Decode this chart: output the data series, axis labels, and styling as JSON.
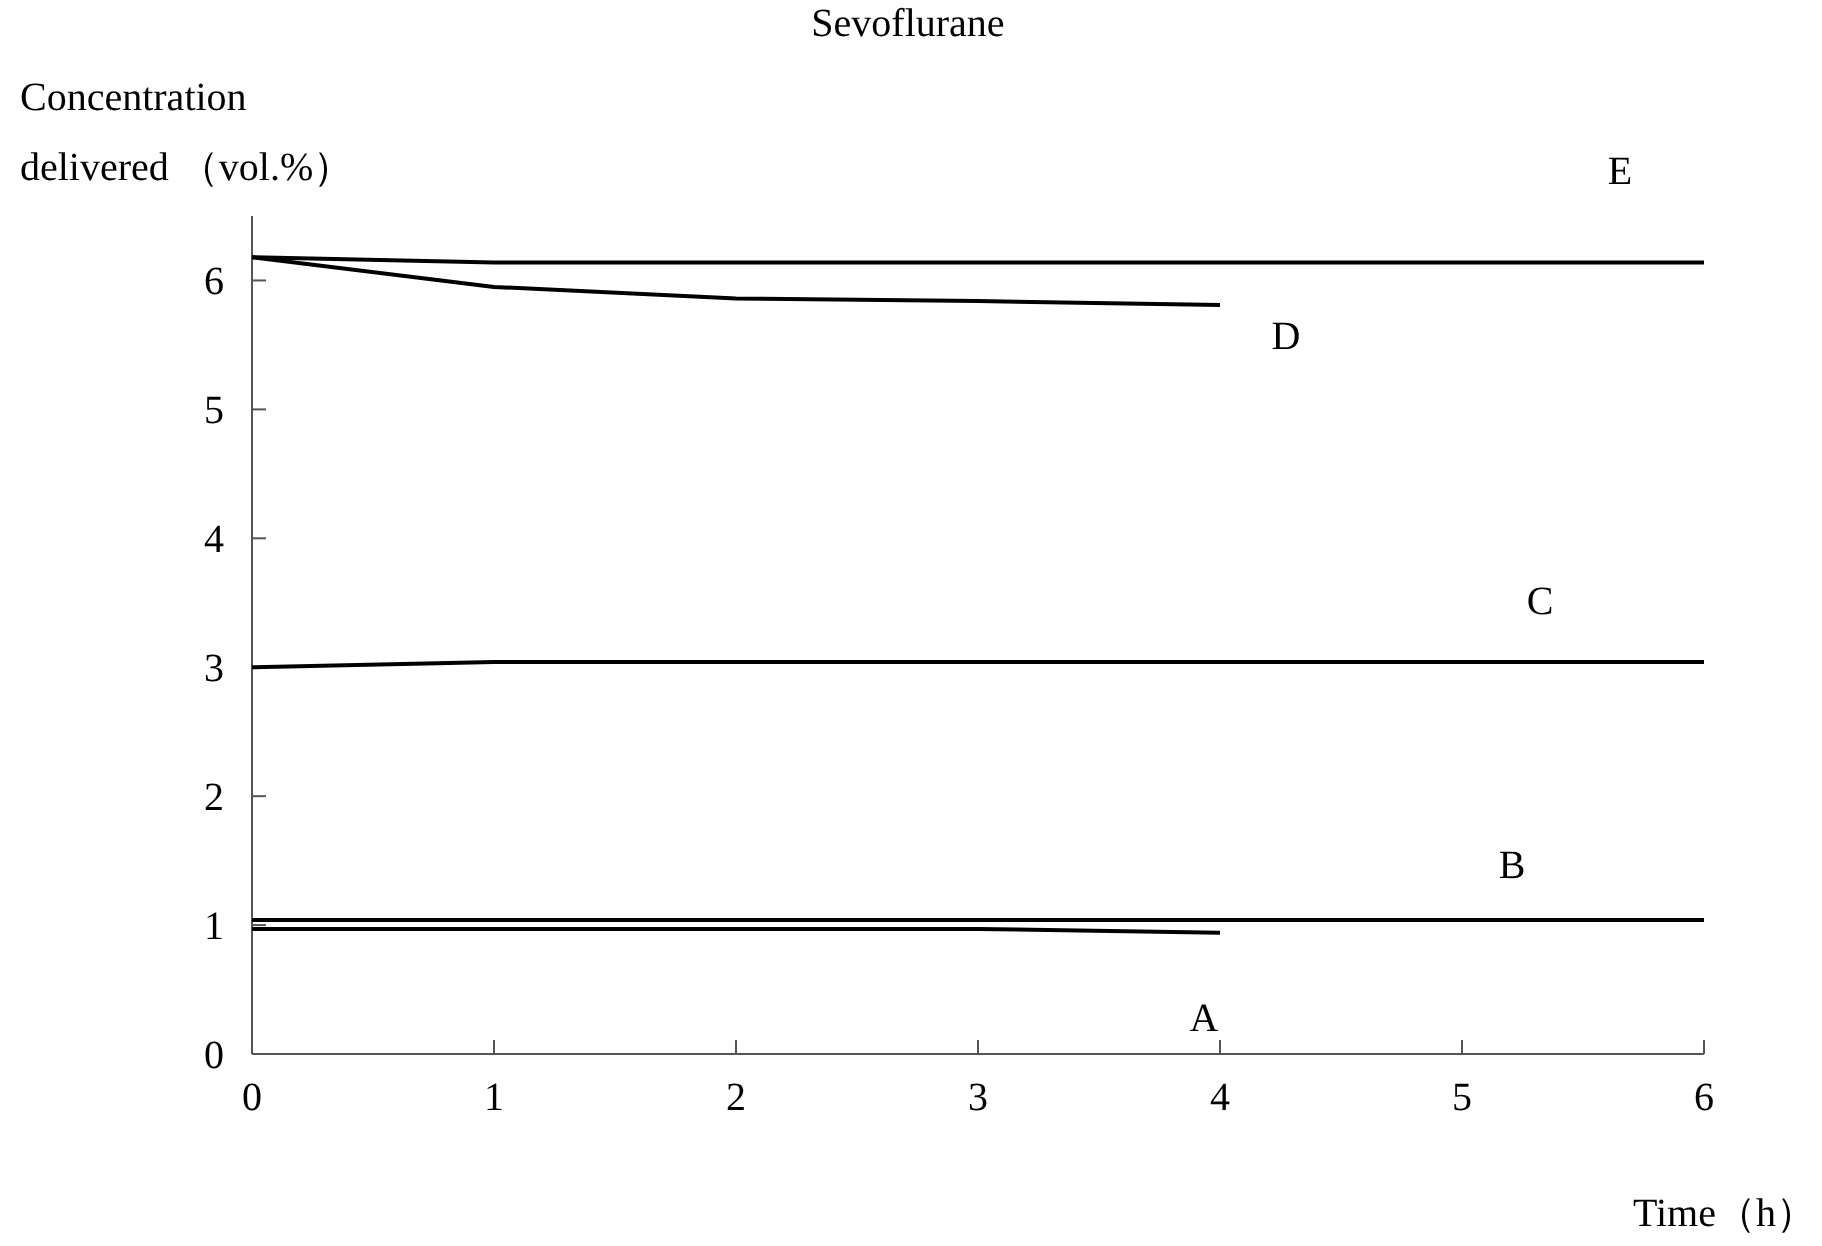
{
  "chart_data": {
    "type": "line",
    "title": "Sevoflurane",
    "ylabel": "Concentration\ndelivered （vol.%）",
    "xlabel": "Time（h）",
    "xlim": [
      0,
      6
    ],
    "ylim": [
      0,
      6.5
    ],
    "xticks": [
      0,
      1,
      2,
      3,
      4,
      5,
      6
    ],
    "yticks": [
      0,
      1,
      2,
      3,
      4,
      5,
      6
    ],
    "series": [
      {
        "name": "E",
        "color": "#000000",
        "x": [
          0,
          1,
          2,
          3,
          4,
          5,
          6
        ],
        "values": [
          6.18,
          6.14,
          6.14,
          6.14,
          6.14,
          6.14,
          6.14
        ]
      },
      {
        "name": "D",
        "color": "#000000",
        "x": [
          0,
          1,
          2,
          3,
          4
        ],
        "values": [
          6.18,
          5.95,
          5.86,
          5.84,
          5.81
        ]
      },
      {
        "name": "C",
        "color": "#000000",
        "x": [
          0,
          1,
          2,
          3,
          4,
          5,
          6
        ],
        "values": [
          3.0,
          3.04,
          3.04,
          3.04,
          3.04,
          3.04,
          3.04
        ]
      },
      {
        "name": "B",
        "color": "#000000",
        "x": [
          0,
          1,
          2,
          3,
          4,
          5,
          6
        ],
        "values": [
          1.04,
          1.04,
          1.04,
          1.04,
          1.04,
          1.04,
          1.04
        ]
      },
      {
        "name": "A",
        "color": "#000000",
        "x": [
          0,
          1,
          2,
          3,
          4
        ],
        "values": [
          0.97,
          0.97,
          0.97,
          0.97,
          0.94
        ]
      }
    ]
  }
}
